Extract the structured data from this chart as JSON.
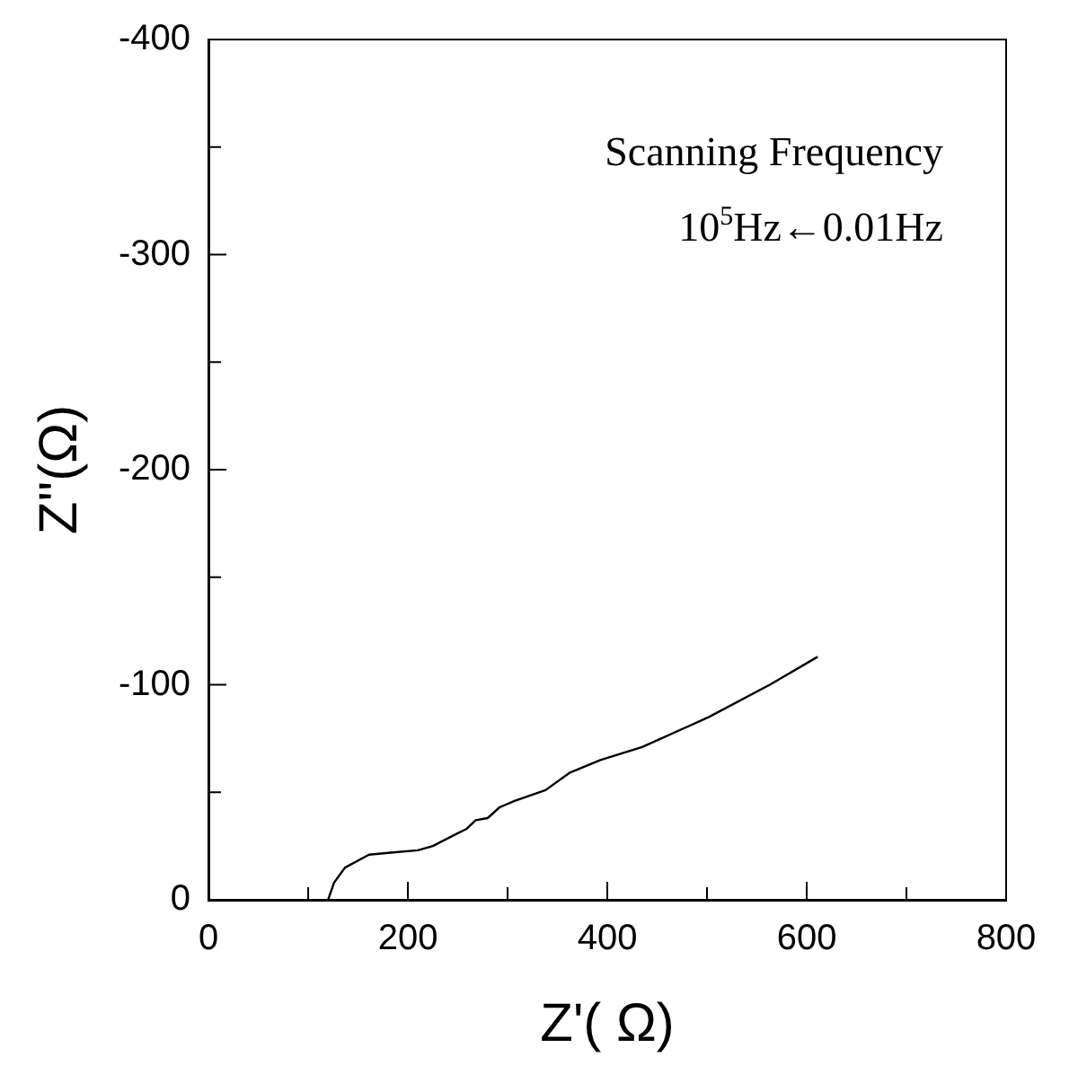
{
  "chart_data": {
    "type": "line",
    "xlabel": "Z'( Ω)",
    "ylabel": "Z''(Ω)",
    "annotations": [
      "Scanning Frequency",
      "10$^{5}$Hz←0.01Hz"
    ],
    "x": [
      120,
      126,
      137,
      161,
      185,
      210,
      225,
      246,
      259,
      268,
      280,
      292,
      307,
      338,
      362,
      393,
      435,
      502,
      563,
      611
    ],
    "series": [
      {
        "color": "#000000",
        "values": [
          0,
          -8,
          -15,
          -21,
          -22,
          -23,
          -25,
          -30,
          -33,
          -37,
          -38,
          -43,
          -46,
          -51,
          -59,
          -65,
          -71,
          -85,
          -100,
          -113
        ]
      }
    ],
    "xlim": [
      0,
      800
    ],
    "xticks": [
      0,
      {
        "value": 100,
        "label": null
      },
      200,
      {
        "value": 300,
        "label": null
      },
      400,
      {
        "value": 500,
        "label": null
      },
      600,
      {
        "value": 700,
        "label": null
      },
      800
    ],
    "ylim": [
      0,
      -400
    ],
    "yticks": [
      0,
      {
        "value": -50,
        "label": null
      },
      -100,
      {
        "value": -150,
        "label": null
      },
      -200,
      {
        "value": -250,
        "label": null
      },
      -300,
      {
        "value": -350,
        "label": null
      },
      -400
    ],
    "grid": false,
    "legend": false,
    "marker": "none",
    "line_style": "solid"
  }
}
